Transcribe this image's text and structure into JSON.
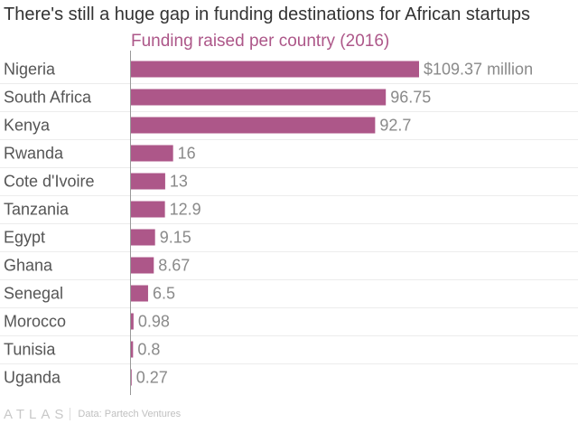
{
  "title": "There's still a huge gap in funding destinations for African startups",
  "footer": {
    "logo": "ATLAS",
    "source": "Data: Partech Ventures"
  },
  "colors": {
    "bar": "#ad5789",
    "subtitle": "#ad5789",
    "label": "#555555",
    "value": "#8a8a8a",
    "grid": "#ececec",
    "axis": "#999999"
  },
  "chart_data": {
    "type": "bar",
    "orientation": "horizontal",
    "title": "Funding raised per country (2016)",
    "categories": [
      "Nigeria",
      "South Africa",
      "Kenya",
      "Rwanda",
      "Cote d'Ivoire",
      "Tanzania",
      "Egypt",
      "Ghana",
      "Senegal",
      "Morocco",
      "Tunisia",
      "Uganda"
    ],
    "values": [
      109.37,
      96.75,
      92.7,
      16,
      13,
      12.9,
      9.15,
      8.67,
      6.5,
      0.98,
      0.8,
      0.27
    ],
    "value_labels": [
      "$109.37 million",
      "96.75",
      "92.7",
      "16",
      "13",
      "12.9",
      "9.15",
      "8.67",
      "6.5",
      "0.98",
      "0.8",
      "0.27"
    ],
    "xlabel": "",
    "ylabel": "",
    "xlim": [
      0,
      109.37
    ],
    "grid": true,
    "legend": "none"
  }
}
